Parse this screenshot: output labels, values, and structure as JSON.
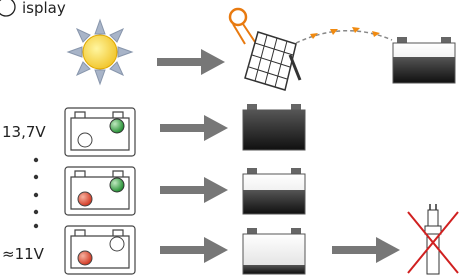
{
  "header": {
    "title": "isplay"
  },
  "levels": [
    {
      "label": "13,7V"
    },
    {
      "label": "≈11V"
    }
  ]
}
